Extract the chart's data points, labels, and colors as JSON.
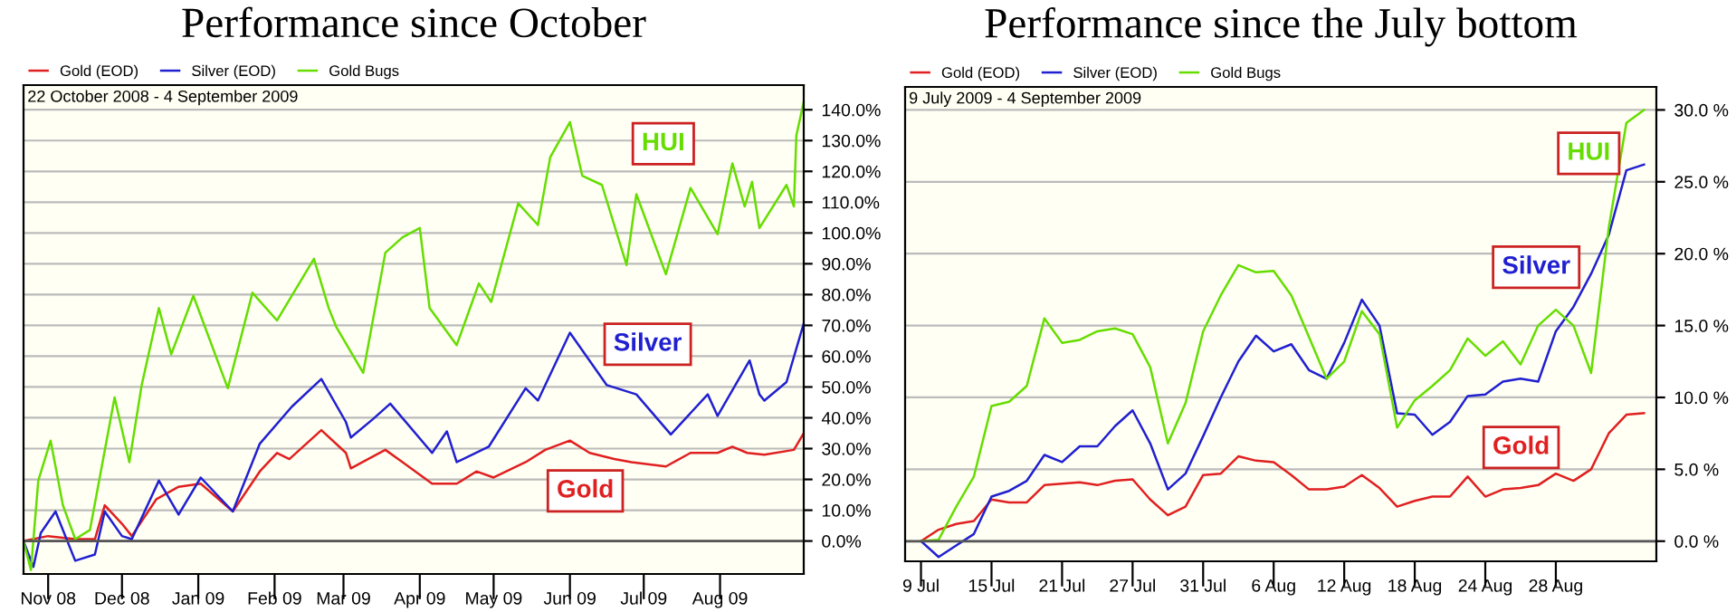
{
  "chart_data": [
    {
      "type": "line",
      "title": "Performance since October",
      "subtitle": "22 October 2008 - 4 September 2009",
      "legend": "top left",
      "grid": "y",
      "xlim": [
        "2008-10-22",
        "2009-09-04"
      ],
      "ylim": [
        -10.7,
        148
      ],
      "xticks": [
        {
          "value": "2008-11-01",
          "label": "Nov 08"
        },
        {
          "value": "2008-12-01",
          "label": "Dec 08"
        },
        {
          "value": "2009-01-01",
          "label": "Jan 09"
        },
        {
          "value": "2009-02-01",
          "label": "Feb 09"
        },
        {
          "value": "2009-03-01",
          "label": "Mar 09"
        },
        {
          "value": "2009-04-01",
          "label": "Apr 09"
        },
        {
          "value": "2009-05-01",
          "label": "May 09"
        },
        {
          "value": "2009-06-01",
          "label": "Jun 09"
        },
        {
          "value": "2009-07-01",
          "label": "Jul 09"
        },
        {
          "value": "2009-08-01",
          "label": "Aug 09"
        }
      ],
      "yticks": [
        {
          "value": 0,
          "label": "0.0%"
        },
        {
          "value": 10,
          "label": "10.0%"
        },
        {
          "value": 20,
          "label": "20.0%"
        },
        {
          "value": 30,
          "label": "30.0%"
        },
        {
          "value": 40,
          "label": "40.0%"
        },
        {
          "value": 50,
          "label": "50.0%"
        },
        {
          "value": 60,
          "label": "60.0%"
        },
        {
          "value": 70,
          "label": "70.0%"
        },
        {
          "value": 80,
          "label": "80.0%"
        },
        {
          "value": 90,
          "label": "90.0%"
        },
        {
          "value": 100,
          "label": "100.0%"
        },
        {
          "value": 110,
          "label": "110.0%"
        },
        {
          "value": 120,
          "label": "120.0%"
        },
        {
          "value": 130,
          "label": "130.0%"
        },
        {
          "value": 140,
          "label": "140.0%"
        }
      ],
      "ref_lines": [
        {
          "axis": "y",
          "value": 0,
          "label": null,
          "color": "#555555"
        }
      ],
      "annotations": [
        "Gold",
        "Silver",
        "HUI"
      ],
      "series": [
        {
          "name": "Gold (EOD)",
          "color": "#e02020",
          "x": [
            "2008-10-22",
            "2008-11-01",
            "2008-11-12",
            "2008-11-20",
            "2008-11-24",
            "2008-12-01",
            "2008-12-05",
            "2008-12-15",
            "2008-12-24",
            "2009-01-02",
            "2009-01-15",
            "2009-01-26",
            "2009-02-02",
            "2009-02-07",
            "2009-02-20",
            "2009-03-02",
            "2009-03-04",
            "2009-03-18",
            "2009-03-25",
            "2009-04-06",
            "2009-04-16",
            "2009-04-24",
            "2009-05-01",
            "2009-05-14",
            "2009-05-22",
            "2009-06-01",
            "2009-06-09",
            "2009-06-19",
            "2009-06-26",
            "2009-07-10",
            "2009-07-20",
            "2009-07-31",
            "2009-08-06",
            "2009-08-12",
            "2009-08-19",
            "2009-08-31",
            "2009-09-04"
          ],
          "values": [
            0,
            1.6,
            0.6,
            0.6,
            11.6,
            5.6,
            1.6,
            13.6,
            17.6,
            18.6,
            9.6,
            22.6,
            28.6,
            26.6,
            36,
            28.6,
            23.6,
            29.6,
            25.6,
            18.6,
            18.6,
            22.6,
            20.6,
            25.6,
            29.6,
            32.6,
            28.6,
            26.6,
            25.6,
            24.2,
            28.6,
            28.6,
            30.6,
            28.6,
            28,
            29.6,
            35
          ]
        },
        {
          "name": "Silver (EOD)",
          "color": "#2020d0",
          "x": [
            "2008-10-22",
            "2008-10-26",
            "2008-10-29",
            "2008-11-04",
            "2008-11-12",
            "2008-11-20",
            "2008-11-24",
            "2008-12-01",
            "2008-12-05",
            "2008-12-16",
            "2008-12-24",
            "2009-01-02",
            "2009-01-15",
            "2009-01-26",
            "2009-02-08",
            "2009-02-20",
            "2009-03-02",
            "2009-03-04",
            "2009-03-13",
            "2009-03-20",
            "2009-04-06",
            "2009-04-12",
            "2009-04-16",
            "2009-04-29",
            "2009-05-14",
            "2009-05-19",
            "2009-06-01",
            "2009-06-16",
            "2009-06-28",
            "2009-07-12",
            "2009-07-27",
            "2009-07-31",
            "2009-08-13",
            "2009-08-17",
            "2009-08-19",
            "2009-08-28",
            "2009-09-04"
          ],
          "values": [
            0,
            -8.4,
            2.6,
            9.6,
            -6.4,
            -4.4,
            9.6,
            1.6,
            0.6,
            19.6,
            8.6,
            20.6,
            9.6,
            31.6,
            43.6,
            52.6,
            38.6,
            33.6,
            39.6,
            44.6,
            28.6,
            35.6,
            25.6,
            30.6,
            49.6,
            45.6,
            67.6,
            50.6,
            47.6,
            34.6,
            47.6,
            40.6,
            58.6,
            47.6,
            45.6,
            51.6,
            70.6
          ]
        },
        {
          "name": "Gold Bugs",
          "color": "#66dd00",
          "x": [
            "2008-10-22",
            "2008-10-25",
            "2008-10-28",
            "2008-11-02",
            "2008-11-07",
            "2008-11-12",
            "2008-11-18",
            "2008-11-28",
            "2008-12-04",
            "2008-12-09",
            "2008-12-16",
            "2008-12-21",
            "2008-12-30",
            "2009-01-13",
            "2009-01-23",
            "2009-02-02",
            "2009-02-17",
            "2009-02-23",
            "2009-02-26",
            "2009-03-09",
            "2009-03-18",
            "2009-03-25",
            "2009-04-01",
            "2009-04-05",
            "2009-04-16",
            "2009-04-25",
            "2009-04-30",
            "2009-05-11",
            "2009-05-19",
            "2009-05-24",
            "2009-06-01",
            "2009-06-06",
            "2009-06-14",
            "2009-06-24",
            "2009-06-28",
            "2009-07-10",
            "2009-07-20",
            "2009-07-31",
            "2009-08-06",
            "2009-08-11",
            "2009-08-14",
            "2009-08-17",
            "2009-08-28",
            "2009-08-31",
            "2009-09-01",
            "2009-09-04"
          ],
          "values": [
            0,
            -9.4,
            19.6,
            32.6,
            11.6,
            0.6,
            3.6,
            46.6,
            25.6,
            50.6,
            75.6,
            60.6,
            79.6,
            49.6,
            80.6,
            71.6,
            91.6,
            75.6,
            69.6,
            54.6,
            93.6,
            98.6,
            101.6,
            75.6,
            63.6,
            83.6,
            77.6,
            109.6,
            102.6,
            124.6,
            136,
            118.6,
            115.6,
            89.6,
            112.6,
            86.6,
            114.6,
            99.6,
            122.6,
            108.6,
            116.6,
            101.6,
            115.6,
            108.6,
            131.6,
            142.6
          ]
        }
      ]
    },
    {
      "type": "line",
      "title": "Performance since the July bottom",
      "subtitle": "9 July 2009 - 4 September 2009",
      "legend": "top left",
      "grid": "y",
      "categories": [
        "9 Jul",
        null,
        null,
        null,
        "15 Jul",
        null,
        null,
        null,
        "21 Jul",
        null,
        null,
        null,
        "27 Jul",
        null,
        null,
        null,
        "31 Jul",
        null,
        null,
        null,
        "6 Aug",
        null,
        null,
        null,
        "12 Aug",
        null,
        null,
        null,
        "18 Aug",
        null,
        null,
        null,
        "24 Aug",
        null,
        null,
        null,
        "28 Aug",
        null,
        null,
        null,
        null,
        null
      ],
      "ylim": [
        -1.4,
        31.6
      ],
      "yticks": [
        {
          "value": 0,
          "label": "0.0 %"
        },
        {
          "value": 5,
          "label": "5.0 %"
        },
        {
          "value": 10,
          "label": "10.0 %"
        },
        {
          "value": 15,
          "label": "15.0 %"
        },
        {
          "value": 20,
          "label": "20.0 %"
        },
        {
          "value": 25,
          "label": "25.0 %"
        },
        {
          "value": 30,
          "label": "30.0 %"
        }
      ],
      "ref_lines": [
        {
          "axis": "y",
          "value": 0,
          "label": null,
          "color": "#555555"
        }
      ],
      "annotations": [
        "Gold",
        "Silver",
        "HUI"
      ],
      "series": [
        {
          "name": "Gold (EOD)",
          "color": "#e02020",
          "values": [
            0,
            0.8,
            1.2,
            1.4,
            2.9,
            2.7,
            2.7,
            3.9,
            4.0,
            4.1,
            3.9,
            4.2,
            4.3,
            2.9,
            1.8,
            2.4,
            4.6,
            4.7,
            5.9,
            5.6,
            5.5,
            4.6,
            3.6,
            3.6,
            3.8,
            4.6,
            3.7,
            2.4,
            2.8,
            3.1,
            3.1,
            4.5,
            3.1,
            3.6,
            3.7,
            3.9,
            4.7,
            4.2,
            5.0,
            7.5,
            8.8,
            8.9
          ]
        },
        {
          "name": "Silver (EOD)",
          "color": "#2020d0",
          "values": [
            0,
            -1.1,
            -0.3,
            0.5,
            3.1,
            3.5,
            4.2,
            6.0,
            5.5,
            6.6,
            6.6,
            8.0,
            9.1,
            6.8,
            3.6,
            4.7,
            7.3,
            10.0,
            12.5,
            14.3,
            13.2,
            13.7,
            11.9,
            11.3,
            13.8,
            16.8,
            15.0,
            8.9,
            8.8,
            7.4,
            8.3,
            10.1,
            10.2,
            11.1,
            11.3,
            11.1,
            14.6,
            16.3,
            18.6,
            21.3,
            25.8,
            26.2
          ]
        },
        {
          "name": "Gold Bugs",
          "color": "#66dd00",
          "values": [
            0,
            0.1,
            2.4,
            4.5,
            9.4,
            9.7,
            10.8,
            15.5,
            13.8,
            14.0,
            14.6,
            14.8,
            14.4,
            12.1,
            6.8,
            9.6,
            14.6,
            17.1,
            19.2,
            18.7,
            18.8,
            17.1,
            14.2,
            11.3,
            12.5,
            16.0,
            14.4,
            7.9,
            9.8,
            10.8,
            11.9,
            14.1,
            12.9,
            13.9,
            12.3,
            15.0,
            16.1,
            15.0,
            11.7,
            21.8,
            29.1,
            30.0
          ]
        }
      ]
    }
  ]
}
